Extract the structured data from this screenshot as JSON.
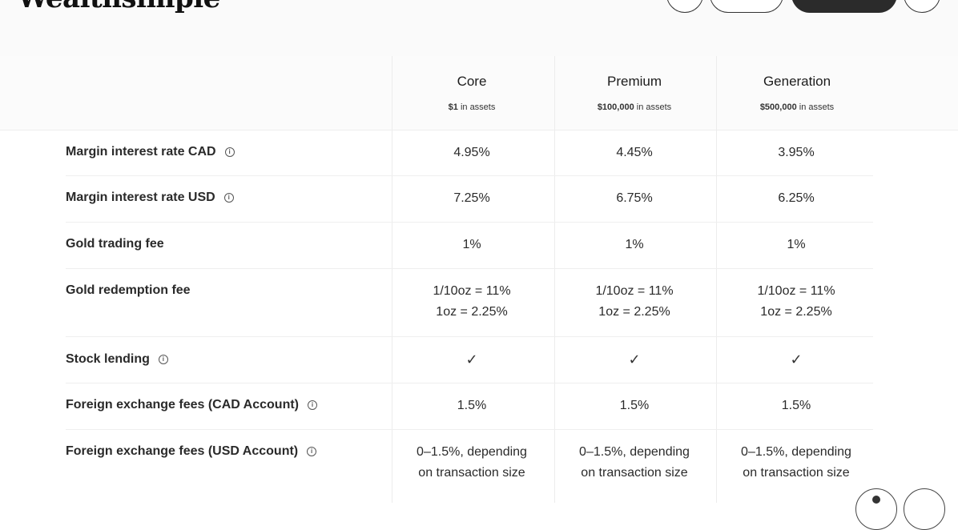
{
  "brand": {
    "logo_text": "Wealthsimple"
  },
  "tiers": [
    {
      "name": "Core",
      "amount": "$1",
      "suffix": " in assets"
    },
    {
      "name": "Premium",
      "amount": "$100,000",
      "suffix": " in assets"
    },
    {
      "name": "Generation",
      "amount": "$500,000",
      "suffix": " in assets"
    }
  ],
  "rows": [
    {
      "label": "Margin interest rate CAD",
      "info": true,
      "values": [
        [
          "4.95%"
        ],
        [
          "4.45%"
        ],
        [
          "3.95%"
        ]
      ]
    },
    {
      "label": "Margin interest rate USD",
      "info": true,
      "values": [
        [
          "7.25%"
        ],
        [
          "6.75%"
        ],
        [
          "6.25%"
        ]
      ]
    },
    {
      "label": "Gold trading fee",
      "info": false,
      "values": [
        [
          "1%"
        ],
        [
          "1%"
        ],
        [
          "1%"
        ]
      ]
    },
    {
      "label": "Gold redemption fee",
      "info": false,
      "values": [
        [
          "1/10oz = 11%",
          "1oz = 2.25%"
        ],
        [
          "1/10oz = 11%",
          "1oz = 2.25%"
        ],
        [
          "1/10oz = 11%",
          "1oz = 2.25%"
        ]
      ]
    },
    {
      "label": "Stock lending",
      "info": true,
      "values": [
        [
          "✓"
        ],
        [
          "✓"
        ],
        [
          "✓"
        ]
      ]
    },
    {
      "label": "Foreign exchange fees (CAD Account)",
      "info": true,
      "values": [
        [
          "1.5%"
        ],
        [
          "1.5%"
        ],
        [
          "1.5%"
        ]
      ]
    },
    {
      "label": "Foreign exchange fees (USD Account)",
      "info": true,
      "values": [
        [
          "0–1.5%, depending",
          "on transaction size"
        ],
        [
          "0–1.5%, depending",
          "on transaction size"
        ],
        [
          "0–1.5%, depending",
          "on transaction size"
        ]
      ]
    }
  ],
  "icons": {
    "info": "info-icon",
    "check": "checkmark-icon"
  },
  "colors": {
    "header_bg": "#fafafa",
    "dark_button": "#2b2b2b",
    "text": "#1f1f1f"
  }
}
